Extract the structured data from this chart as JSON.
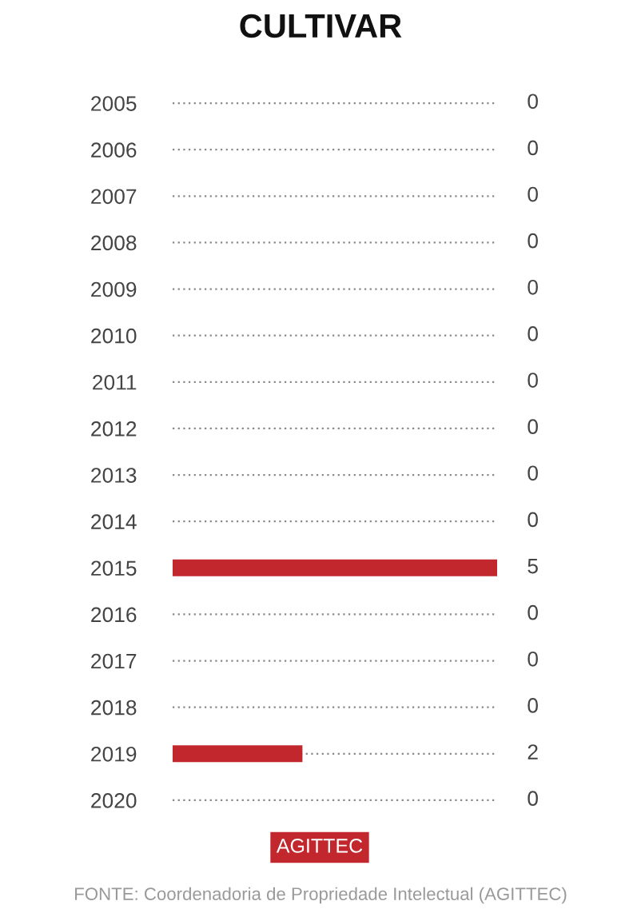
{
  "chart_data": {
    "type": "bar",
    "orientation": "horizontal",
    "title": "CULTIVAR",
    "categories": [
      "2005",
      "2006",
      "2007",
      "2008",
      "2009",
      "2010",
      "2011",
      "2012",
      "2013",
      "2014",
      "2015",
      "2016",
      "2017",
      "2018",
      "2019",
      "2020"
    ],
    "series": [
      {
        "name": "AGITTEC",
        "color": "#c1272d",
        "values": [
          0,
          0,
          0,
          0,
          0,
          0,
          0,
          0,
          0,
          0,
          5,
          0,
          0,
          0,
          2,
          0
        ]
      }
    ],
    "data_labels": true,
    "grid": "y",
    "legend": "bottom",
    "annotations": [
      "FONTE: Coordenadoria de Propriedade Intelectual (AGITTEC)"
    ]
  }
}
